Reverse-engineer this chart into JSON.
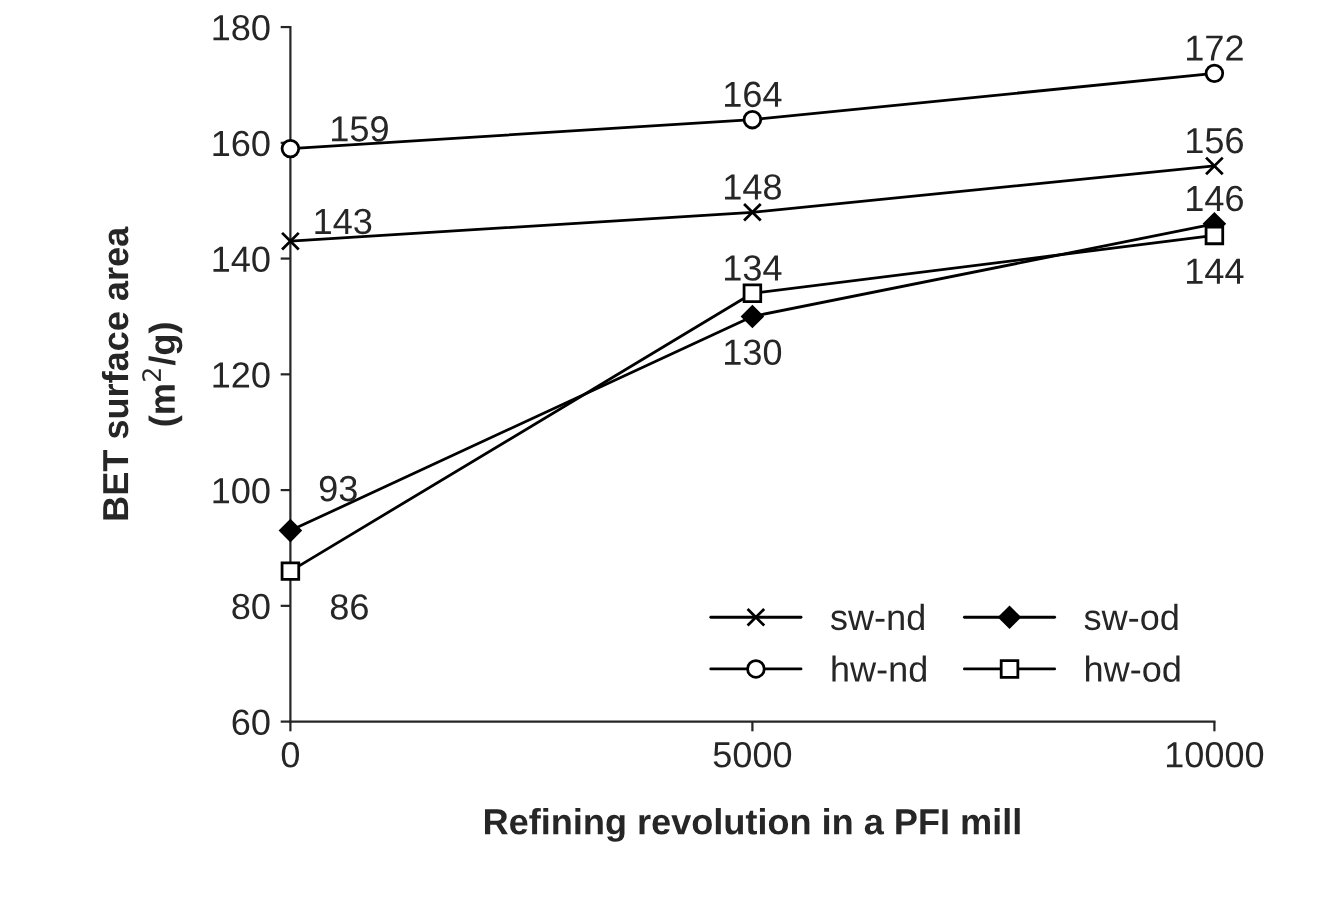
{
  "chart_data": {
    "type": "line",
    "xlabel": "Refining revolution in a PFI mill",
    "ylabel": "BET surface area\n(m$^{2}$/g)",
    "x": [
      0,
      5000,
      10000
    ],
    "series": [
      {
        "name": "sw-nd",
        "color": "#000000",
        "marker": "cross",
        "values": [
          143,
          148,
          156
        ]
      },
      {
        "name": "sw-od",
        "color": "#000000",
        "marker": "diamond",
        "values": [
          93,
          130,
          146
        ]
      },
      {
        "name": "hw-nd",
        "color": "#000000",
        "marker": "circle",
        "values": [
          159,
          164,
          172
        ]
      },
      {
        "name": "hw-od",
        "color": "#000000",
        "marker": "square",
        "values": [
          86,
          134,
          144
        ]
      }
    ],
    "xlim": [
      0,
      10000
    ],
    "xticks": [
      0,
      5000,
      10000
    ],
    "ylim": [
      60,
      180
    ],
    "yticks": [
      60,
      80,
      100,
      120,
      140,
      160,
      180
    ],
    "data_labels": true,
    "grid": false,
    "legend": "bottom right",
    "line_style": "solid"
  }
}
